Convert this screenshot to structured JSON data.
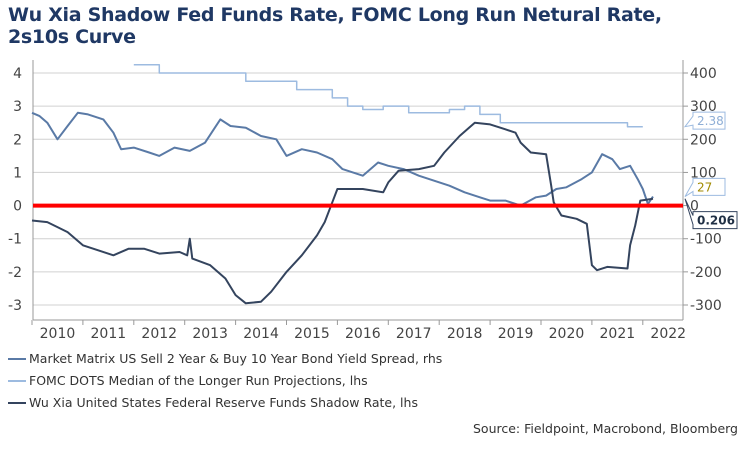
{
  "chart_data": {
    "type": "line",
    "title": "Wu Xia Shadow Fed Funds Rate, FOMC Long Run Netural Rate, 2s10s Curve",
    "x_ticks": [
      "2010",
      "2011",
      "2012",
      "2013",
      "2014",
      "2015",
      "2016",
      "2017",
      "2018",
      "2019",
      "2020",
      "2021",
      "2022"
    ],
    "ylim_left": [
      -3,
      4
    ],
    "yticks_left": [
      "4",
      "3",
      "2",
      "1",
      "0",
      "-1",
      "-2",
      "-3"
    ],
    "ylim_right": [
      -300,
      400
    ],
    "yticks_right": [
      "400",
      "300",
      "200",
      "100",
      "0",
      "-100",
      "-200",
      "-300"
    ],
    "zero_line_color": "#ff0000",
    "series": [
      {
        "name": "Market Matrix US Sell 2 Year & Buy 10 Year Bond Yield Spread, rhs",
        "axis": "right",
        "color": "#5a7aa6",
        "last_label": "27",
        "points": [
          [
            2010,
            280
          ],
          [
            2010.15,
            270
          ],
          [
            2010.3,
            250
          ],
          [
            2010.5,
            200
          ],
          [
            2010.7,
            240
          ],
          [
            2010.9,
            280
          ],
          [
            2011.1,
            275
          ],
          [
            2011.4,
            260
          ],
          [
            2011.6,
            220
          ],
          [
            2011.75,
            170
          ],
          [
            2012,
            175
          ],
          [
            2012.3,
            160
          ],
          [
            2012.5,
            150
          ],
          [
            2012.8,
            175
          ],
          [
            2013.1,
            165
          ],
          [
            2013.4,
            190
          ],
          [
            2013.7,
            260
          ],
          [
            2013.9,
            240
          ],
          [
            2014.2,
            235
          ],
          [
            2014.5,
            210
          ],
          [
            2014.8,
            200
          ],
          [
            2015.0,
            150
          ],
          [
            2015.3,
            170
          ],
          [
            2015.6,
            160
          ],
          [
            2015.9,
            140
          ],
          [
            2016.1,
            110
          ],
          [
            2016.5,
            90
          ],
          [
            2016.8,
            130
          ],
          [
            2017.0,
            120
          ],
          [
            2017.3,
            110
          ],
          [
            2017.6,
            90
          ],
          [
            2017.9,
            75
          ],
          [
            2018.2,
            60
          ],
          [
            2018.5,
            40
          ],
          [
            2018.8,
            25
          ],
          [
            2019.0,
            15
          ],
          [
            2019.3,
            15
          ],
          [
            2019.6,
            0
          ],
          [
            2019.9,
            25
          ],
          [
            2020.1,
            30
          ],
          [
            2020.3,
            50
          ],
          [
            2020.5,
            55
          ],
          [
            2020.8,
            80
          ],
          [
            2021.0,
            100
          ],
          [
            2021.2,
            155
          ],
          [
            2021.4,
            140
          ],
          [
            2021.55,
            110
          ],
          [
            2021.75,
            120
          ],
          [
            2021.9,
            80
          ],
          [
            2022.0,
            50
          ],
          [
            2022.1,
            5
          ],
          [
            2022.2,
            27
          ]
        ]
      },
      {
        "name": "FOMC DOTS Median of the Longer Run Projections, lhs",
        "axis": "left",
        "color": "#9dbbe0",
        "last_label": "2.38",
        "points": [
          [
            2012.0,
            4.25
          ],
          [
            2012.5,
            4.25
          ],
          [
            2012.5,
            4.0
          ],
          [
            2014.2,
            4.0
          ],
          [
            2014.2,
            3.75
          ],
          [
            2015.2,
            3.75
          ],
          [
            2015.2,
            3.5
          ],
          [
            2015.9,
            3.5
          ],
          [
            2015.9,
            3.25
          ],
          [
            2016.2,
            3.25
          ],
          [
            2016.2,
            3.0
          ],
          [
            2016.5,
            3.0
          ],
          [
            2016.5,
            2.9
          ],
          [
            2016.9,
            2.9
          ],
          [
            2016.9,
            3.0
          ],
          [
            2017.4,
            3.0
          ],
          [
            2017.4,
            2.8
          ],
          [
            2018.2,
            2.8
          ],
          [
            2018.2,
            2.9
          ],
          [
            2018.5,
            2.9
          ],
          [
            2018.5,
            3.0
          ],
          [
            2018.8,
            3.0
          ],
          [
            2018.8,
            2.75
          ],
          [
            2019.2,
            2.75
          ],
          [
            2019.2,
            2.5
          ],
          [
            2021.7,
            2.5
          ],
          [
            2021.7,
            2.38
          ],
          [
            2022.0,
            2.38
          ]
        ]
      },
      {
        "name": "Wu Xia United States Federal Reserve Funds Shadow Rate, lhs",
        "axis": "left",
        "color": "#34445e",
        "last_label": "0.206",
        "points": [
          [
            2010,
            -0.45
          ],
          [
            2010.3,
            -0.5
          ],
          [
            2010.5,
            -0.65
          ],
          [
            2010.7,
            -0.8
          ],
          [
            2011.0,
            -1.2
          ],
          [
            2011.3,
            -1.35
          ],
          [
            2011.6,
            -1.5
          ],
          [
            2011.9,
            -1.3
          ],
          [
            2012.2,
            -1.3
          ],
          [
            2012.5,
            -1.45
          ],
          [
            2012.9,
            -1.4
          ],
          [
            2013.05,
            -1.5
          ],
          [
            2013.1,
            -1.0
          ],
          [
            2013.15,
            -1.6
          ],
          [
            2013.5,
            -1.8
          ],
          [
            2013.8,
            -2.2
          ],
          [
            2014.0,
            -2.7
          ],
          [
            2014.2,
            -2.95
          ],
          [
            2014.5,
            -2.9
          ],
          [
            2014.7,
            -2.6
          ],
          [
            2015.0,
            -2.0
          ],
          [
            2015.3,
            -1.5
          ],
          [
            2015.6,
            -0.9
          ],
          [
            2015.75,
            -0.5
          ],
          [
            2015.9,
            0.1
          ],
          [
            2016.0,
            0.5
          ],
          [
            2016.5,
            0.5
          ],
          [
            2016.9,
            0.4
          ],
          [
            2017.0,
            0.7
          ],
          [
            2017.2,
            1.05
          ],
          [
            2017.6,
            1.1
          ],
          [
            2017.9,
            1.2
          ],
          [
            2018.1,
            1.6
          ],
          [
            2018.4,
            2.1
          ],
          [
            2018.7,
            2.5
          ],
          [
            2019.0,
            2.45
          ],
          [
            2019.3,
            2.3
          ],
          [
            2019.5,
            2.2
          ],
          [
            2019.6,
            1.9
          ],
          [
            2019.8,
            1.6
          ],
          [
            2020.1,
            1.55
          ],
          [
            2020.2,
            0.6
          ],
          [
            2020.25,
            0.1
          ],
          [
            2020.4,
            -0.3
          ],
          [
            2020.7,
            -0.4
          ],
          [
            2020.9,
            -0.55
          ],
          [
            2021.0,
            -1.8
          ],
          [
            2021.1,
            -1.95
          ],
          [
            2021.3,
            -1.85
          ],
          [
            2021.7,
            -1.9
          ],
          [
            2021.75,
            -1.2
          ],
          [
            2021.85,
            -0.6
          ],
          [
            2021.95,
            0.15
          ],
          [
            2022.2,
            0.206
          ]
        ]
      }
    ]
  },
  "source": "Source: Fieldpoint, Macrobond, Bloomberg"
}
